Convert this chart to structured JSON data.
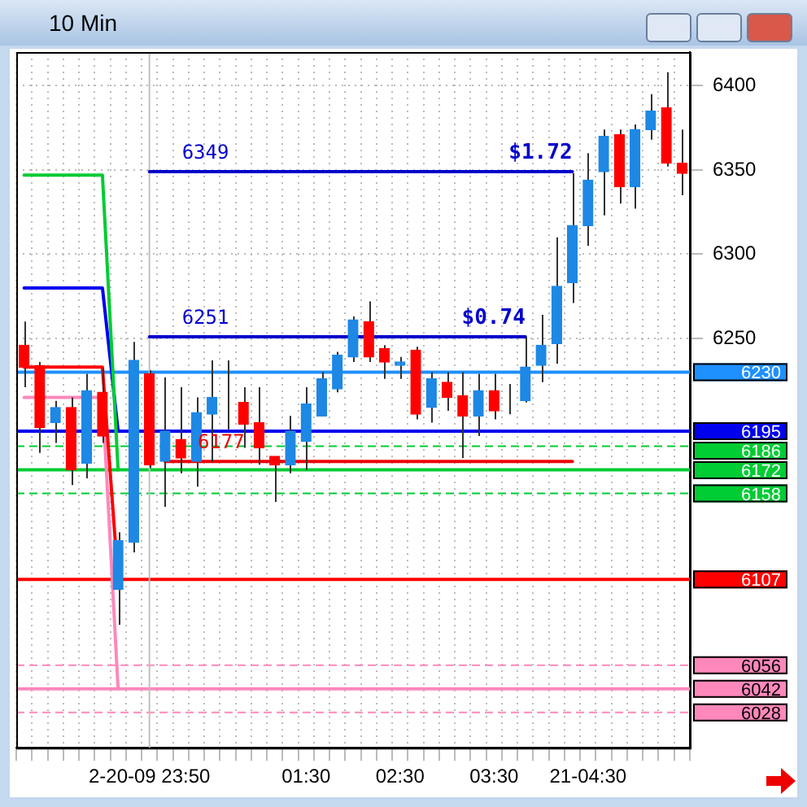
{
  "chart_data": {
    "type": "candlestick",
    "title": "10 Min",
    "categories": [
      null,
      null,
      null,
      null,
      null,
      null,
      null,
      null,
      "2-20-09 23:50",
      null,
      null,
      null,
      null,
      null,
      null,
      null,
      null,
      null,
      "01:30",
      null,
      null,
      null,
      null,
      null,
      "02:30",
      null,
      null,
      null,
      null,
      null,
      "03:30",
      null,
      null,
      null,
      null,
      null,
      "21-04:30",
      null,
      null,
      null,
      null,
      null,
      null
    ],
    "ohlc": [
      [
        6246,
        6260,
        6221,
        6233
      ],
      [
        6234,
        6236,
        6182,
        6197
      ],
      [
        6200,
        6213,
        6188,
        6209
      ],
      [
        6209,
        6215,
        6163,
        6172
      ],
      [
        6176,
        6229,
        6167,
        6219
      ],
      [
        6218,
        6232,
        6188,
        6192
      ],
      [
        6101,
        6135,
        6080,
        6130
      ],
      [
        6129,
        6248,
        6123,
        6237
      ],
      [
        6229,
        6231,
        6173,
        6175
      ],
      [
        6177,
        6227,
        6150,
        6195
      ],
      [
        6190,
        6221,
        6170,
        6179
      ],
      [
        6177,
        6215,
        6162,
        6206
      ],
      [
        6205,
        6237,
        6177,
        6215
      ],
      [
        6215,
        6237,
        6196,
        6215
      ],
      [
        6212,
        6221,
        6185,
        6199
      ],
      [
        6200,
        6221,
        6175,
        6185
      ],
      [
        6180,
        6180,
        6153,
        6175
      ],
      [
        6175,
        6204,
        6170,
        6195
      ],
      [
        6189,
        6221,
        6172,
        6211
      ],
      [
        6204,
        6230,
        6204,
        6226
      ],
      [
        6220,
        6242,
        6218,
        6240
      ],
      [
        6239,
        6263,
        6236,
        6261
      ],
      [
        6260,
        6272,
        6236,
        6239
      ],
      [
        6244,
        6246,
        6226,
        6236
      ],
      [
        6234,
        6239,
        6226,
        6236
      ],
      [
        6243,
        6245,
        6202,
        6205
      ],
      [
        6209,
        6230,
        6200,
        6226
      ],
      [
        6224,
        6230,
        6207,
        6215
      ],
      [
        6216,
        6230,
        6179,
        6204
      ],
      [
        6204,
        6229,
        6192,
        6219
      ],
      [
        6219,
        6229,
        6202,
        6207
      ],
      [
        6214,
        6223,
        6205,
        6214
      ],
      [
        6213,
        6251,
        6212,
        6233
      ],
      [
        6234,
        6264,
        6224,
        6246
      ],
      [
        6247,
        6310,
        6235,
        6281
      ],
      [
        6283,
        6348,
        6271,
        6317
      ],
      [
        6317,
        6360,
        6305,
        6344
      ],
      [
        6349,
        6374,
        6323,
        6370
      ],
      [
        6371,
        6374,
        6330,
        6340
      ],
      [
        6340,
        6377,
        6327,
        6374
      ],
      [
        6374,
        6395,
        6368,
        6385
      ],
      [
        6387,
        6408,
        6352,
        6354
      ],
      [
        6354,
        6374,
        6335,
        6348
      ]
    ],
    "colors": [
      "#ff0000",
      "#ff0000",
      "#1e88e5",
      "#ff0000",
      "#1e88e5",
      "#ff0000",
      "#1e88e5",
      "#1e88e5",
      "#ff0000",
      "#1e88e5",
      "#ff0000",
      "#1e88e5",
      "#1e88e5",
      "#1e88e5",
      "#ff0000",
      "#ff0000",
      "#ff0000",
      "#1e88e5",
      "#1e88e5",
      "#1e88e5",
      "#1e88e5",
      "#1e88e5",
      "#ff0000",
      "#ff0000",
      "#1e88e5",
      "#ff0000",
      "#1e88e5",
      "#ff0000",
      "#ff0000",
      "#1e88e5",
      "#ff0000",
      "#1e88e5",
      "#1e88e5",
      "#1e88e5",
      "#1e88e5",
      "#1e88e5",
      "#1e88e5",
      "#1e88e5",
      "#ff0000",
      "#1e88e5",
      "#1e88e5",
      "#ff0000",
      "#ff0000"
    ],
    "series": [
      {
        "type": "line",
        "color": "#00cc33",
        "values": [
          6347,
          6347,
          6347,
          6347,
          6347,
          6347,
          6172,
          null,
          null,
          null,
          null,
          null,
          null,
          null,
          null,
          null,
          null,
          null,
          null,
          null,
          null,
          null,
          null,
          null,
          null,
          null,
          null,
          null,
          null,
          null,
          null,
          null,
          null,
          null,
          null,
          null,
          null,
          null,
          null,
          null,
          null,
          null,
          null
        ]
      },
      {
        "type": "line",
        "color": "#0000ee",
        "values": [
          6280,
          6280,
          6280,
          6280,
          6280,
          6280,
          6195,
          null,
          null,
          null,
          null,
          null,
          null,
          null,
          null,
          null,
          null,
          null,
          null,
          null,
          null,
          null,
          null,
          null,
          null,
          null,
          null,
          null,
          null,
          null,
          null,
          null,
          null,
          null,
          null,
          null,
          null,
          null,
          null,
          null,
          null,
          null,
          null
        ]
      },
      {
        "type": "line",
        "color": "#ff0000",
        "values": [
          6233,
          6233,
          6233,
          6233,
          6233,
          6233,
          6107,
          null,
          null,
          null,
          null,
          null,
          null,
          null,
          null,
          null,
          null,
          null,
          null,
          null,
          null,
          null,
          null,
          null,
          null,
          null,
          null,
          null,
          null,
          null,
          null,
          null,
          null,
          null,
          null,
          null,
          null,
          null,
          null,
          null,
          null,
          null,
          null
        ]
      },
      {
        "type": "line",
        "color": "#ff88bb",
        "values": [
          6215,
          6215,
          6215,
          6215,
          6215,
          6215,
          6042,
          null,
          null,
          null,
          null,
          null,
          null,
          null,
          null,
          null,
          null,
          null,
          null,
          null,
          null,
          null,
          null,
          null,
          null,
          null,
          null,
          null,
          null,
          null,
          null,
          null,
          null,
          null,
          null,
          null,
          null,
          null,
          null,
          null,
          null,
          null,
          null
        ]
      },
      {
        "type": "line",
        "color": "#0000cc",
        "values": [
          null,
          null,
          null,
          null,
          null,
          null,
          null,
          null,
          6349,
          6349,
          6349,
          6349,
          6349,
          6349,
          6349,
          6349,
          6349,
          6349,
          6349,
          6349,
          6349,
          6349,
          6349,
          6349,
          6349,
          6349,
          6349,
          6349,
          6349,
          6349,
          6349,
          6349,
          6349,
          6349,
          6349,
          6349,
          null,
          null,
          null,
          null,
          null,
          null,
          null
        ]
      },
      {
        "type": "line",
        "color": "#0000cc",
        "values": [
          null,
          null,
          null,
          null,
          null,
          null,
          null,
          null,
          6251,
          6251,
          6251,
          6251,
          6251,
          6251,
          6251,
          6251,
          6251,
          6251,
          6251,
          6251,
          6251,
          6251,
          6251,
          6251,
          6251,
          6251,
          6251,
          6251,
          6251,
          6251,
          6251,
          6251,
          6251,
          null,
          null,
          null,
          null,
          null,
          null,
          null,
          null,
          null,
          null
        ]
      },
      {
        "type": "line",
        "color": "#ee0000",
        "values": [
          null,
          null,
          null,
          null,
          null,
          null,
          null,
          null,
          null,
          6177,
          6177,
          6177,
          6177,
          6177,
          6177,
          6177,
          6177,
          6177,
          6177,
          6177,
          6177,
          6177,
          6177,
          6177,
          6177,
          6177,
          6177,
          6177,
          6177,
          6177,
          6177,
          6177,
          6177,
          6177,
          6177,
          6177,
          null,
          null,
          null,
          null,
          null,
          null,
          null
        ]
      }
    ],
    "annotations": [
      {
        "text": "6349",
        "y": 6349
      },
      {
        "text": "$1.72",
        "y": 6349
      },
      {
        "text": "6251",
        "y": 6251
      },
      {
        "text": "$0.74",
        "y": 6251
      },
      {
        "text": "6177",
        "y": 6177
      }
    ],
    "ref_lines": [
      {
        "axis": "y",
        "value": 6230,
        "label": "6230",
        "color": "#1e90ff"
      },
      {
        "axis": "y",
        "value": 6195,
        "label": "6195",
        "color": "#0000ee"
      },
      {
        "axis": "y",
        "value": 6186,
        "label": "6186",
        "color": "#00cc33",
        "line_style": "dashed"
      },
      {
        "axis": "y",
        "value": 6172,
        "label": "6172",
        "color": "#00cc33"
      },
      {
        "axis": "y",
        "value": 6158,
        "label": "6158",
        "color": "#00cc33",
        "line_style": "dashed"
      },
      {
        "axis": "y",
        "value": 6107,
        "label": "6107",
        "color": "#ff0000"
      },
      {
        "axis": "y",
        "value": 6056,
        "label": "6056",
        "color": "#ff88bb",
        "line_style": "dashed"
      },
      {
        "axis": "y",
        "value": 6042,
        "label": "6042",
        "color": "#ff88bb"
      },
      {
        "axis": "y",
        "value": 6028,
        "label": "6028",
        "color": "#ff88bb",
        "line_style": "dashed"
      },
      {
        "axis": "x",
        "value": "2-20-09 23:50",
        "color": "#c0c0c0"
      }
    ],
    "ylim": [
      6007,
      6420
    ],
    "yticks": [
      6250,
      6300,
      6350,
      6400
    ],
    "grid": true
  }
}
